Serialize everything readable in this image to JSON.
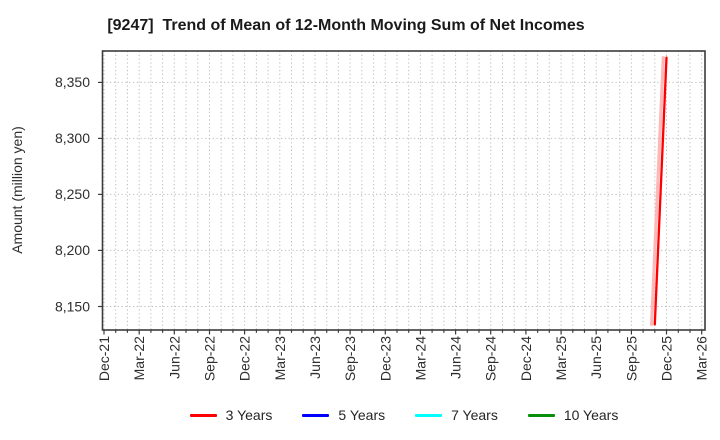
{
  "chart_data": {
    "type": "line",
    "title": "[9247]  Trend of Mean of 12-Month Moving Sum of Net Incomes",
    "ylabel": "Amount (million yen)",
    "x_tick_labels": [
      "Dec-21",
      "Mar-22",
      "Jun-22",
      "Sep-22",
      "Dec-22",
      "Mar-23",
      "Jun-23",
      "Sep-23",
      "Dec-23",
      "Mar-24",
      "Jun-24",
      "Sep-24",
      "Dec-24",
      "Mar-25",
      "Jun-25",
      "Sep-25",
      "Dec-25",
      "Mar-26"
    ],
    "months_per_major_tick": 3,
    "x_total_months": 51,
    "minor_vertical_grid_every_month": true,
    "ylim": [
      8129,
      8378
    ],
    "y_ticks": [
      8150,
      8200,
      8250,
      8300,
      8350
    ],
    "y_tick_labels": [
      "8,150",
      "8,200",
      "8,250",
      "8,300",
      "8,350"
    ],
    "grid": {
      "color": "#bababa",
      "style": "dotted"
    },
    "axes_color": "#3c3c3c",
    "legend_position": "bottom-center",
    "series": [
      {
        "name": "3 Years",
        "color": "#ff0000",
        "shadow_color": "#ffb8b8",
        "points": [
          {
            "label": "Nov-25",
            "month_index": 47,
            "value": 8134
          },
          {
            "label": "Dec-25",
            "month_index": 48,
            "value": 8372
          }
        ]
      },
      {
        "name": "5 Years",
        "color": "#0000ff",
        "points": []
      },
      {
        "name": "7 Years",
        "color": "#00ffff",
        "points": []
      },
      {
        "name": "10 Years",
        "color": "#0a8f0a",
        "points": []
      }
    ]
  }
}
